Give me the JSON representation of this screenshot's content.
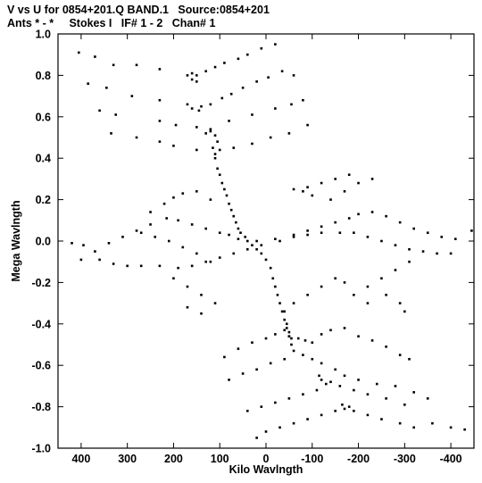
{
  "header": {
    "line1": "V vs U for 0854+201.Q BAND.1   Source:0854+201",
    "line2": "Ants * - *     Stokes I   IF# 1 - 2   Chan# 1"
  },
  "chart_data": {
    "type": "scatter",
    "title": "V vs U for 0854+201.Q BAND.1   Source:0854+201",
    "subtitle": "Ants * - *     Stokes I   IF# 1 - 2   Chan# 1",
    "xlabel": "Kilo Wavlngth",
    "ylabel": "Mega Wavlngth",
    "xlim": [
      450,
      -450
    ],
    "ylim": [
      -1.0,
      1.0
    ],
    "x_reversed": true,
    "x_ticks": [
      400,
      300,
      200,
      100,
      0,
      -100,
      -200,
      -300,
      -400
    ],
    "x_tick_labels": [
      "400",
      "300",
      "200",
      "100",
      "0",
      "-100",
      "-200",
      "-300",
      "-400"
    ],
    "y_ticks": [
      1.0,
      0.8,
      0.6,
      0.4,
      0.2,
      0.0,
      -0.2,
      -0.4,
      -0.6,
      -0.8,
      -1.0
    ],
    "y_tick_labels": [
      "1.0",
      "0.8",
      "0.6",
      "0.4",
      "0.2",
      "0.0",
      "-0.2",
      "-0.4",
      "-0.6",
      "-0.8",
      "-1.0"
    ],
    "grid": false,
    "marker_color": "#000000",
    "series": [
      {
        "values": [
          [
            405,
            0.91
          ],
          [
            370,
            0.89
          ],
          [
            330,
            0.85
          ],
          [
            280,
            0.85
          ],
          [
            230,
            0.83
          ],
          [
            160,
            0.81
          ],
          [
            150,
            0.8
          ],
          [
            130,
            0.82
          ],
          [
            110,
            0.84
          ],
          [
            90,
            0.86
          ],
          [
            60,
            0.88
          ],
          [
            40,
            0.9
          ],
          [
            10,
            0.93
          ],
          [
            -20,
            0.95
          ],
          [
            385,
            0.76
          ],
          [
            345,
            0.74
          ],
          [
            290,
            0.7
          ],
          [
            230,
            0.68
          ],
          [
            170,
            0.66
          ],
          [
            140,
            0.65
          ],
          [
            120,
            0.66
          ],
          [
            95,
            0.69
          ],
          [
            75,
            0.71
          ],
          [
            50,
            0.74
          ],
          [
            20,
            0.77
          ],
          [
            -5,
            0.79
          ],
          [
            -35,
            0.82
          ],
          [
            -60,
            0.8
          ],
          [
            360,
            0.63
          ],
          [
            325,
            0.61
          ],
          [
            230,
            0.58
          ],
          [
            195,
            0.56
          ],
          [
            150,
            0.55
          ],
          [
            130,
            0.52
          ],
          [
            120,
            0.53
          ],
          [
            80,
            0.58
          ],
          [
            30,
            0.61
          ],
          [
            -20,
            0.64
          ],
          [
            -55,
            0.66
          ],
          [
            -80,
            0.68
          ],
          [
            335,
            0.52
          ],
          [
            280,
            0.5
          ],
          [
            230,
            0.48
          ],
          [
            200,
            0.46
          ],
          [
            150,
            0.44
          ],
          [
            110,
            0.42
          ],
          [
            70,
            0.45
          ],
          [
            30,
            0.47
          ],
          [
            -10,
            0.5
          ],
          [
            -50,
            0.52
          ],
          [
            -90,
            0.56
          ],
          [
            115,
            0.45
          ],
          [
            110,
            0.4
          ],
          [
            105,
            0.35
          ],
          [
            100,
            0.32
          ],
          [
            95,
            0.28
          ],
          [
            90,
            0.25
          ],
          [
            85,
            0.22
          ],
          [
            80,
            0.18
          ],
          [
            75,
            0.15
          ],
          [
            70,
            0.12
          ],
          [
            65,
            0.09
          ],
          [
            60,
            0.06
          ],
          [
            55,
            0.04
          ],
          [
            45,
            0.02
          ],
          [
            40,
            0.0
          ],
          [
            30,
            -0.02
          ],
          [
            20,
            -0.04
          ],
          [
            10,
            -0.06
          ],
          [
            0,
            -0.09
          ],
          [
            -10,
            -0.13
          ],
          [
            -15,
            -0.18
          ],
          [
            -20,
            -0.22
          ],
          [
            -25,
            -0.26
          ],
          [
            -30,
            -0.3
          ],
          [
            -35,
            -0.34
          ],
          [
            -40,
            -0.38
          ],
          [
            -45,
            -0.42
          ],
          [
            -50,
            -0.46
          ],
          [
            -55,
            -0.5
          ],
          [
            420,
            -0.01
          ],
          [
            395,
            -0.02
          ],
          [
            370,
            -0.05
          ],
          [
            340,
            -0.01
          ],
          [
            310,
            0.02
          ],
          [
            280,
            0.05
          ],
          [
            250,
            0.08
          ],
          [
            215,
            0.11
          ],
          [
            190,
            0.1
          ],
          [
            160,
            0.08
          ],
          [
            130,
            0.06
          ],
          [
            100,
            0.04
          ],
          [
            80,
            0.03
          ],
          [
            60,
            0.01
          ],
          [
            20,
            0.0
          ],
          [
            -20,
            0.01
          ],
          [
            -60,
            0.03
          ],
          [
            -90,
            0.05
          ],
          [
            -120,
            0.07
          ],
          [
            -150,
            0.09
          ],
          [
            -180,
            0.11
          ],
          [
            -200,
            0.13
          ],
          [
            -230,
            0.14
          ],
          [
            -260,
            0.12
          ],
          [
            -290,
            0.09
          ],
          [
            -320,
            0.06
          ],
          [
            -350,
            0.04
          ],
          [
            -380,
            0.02
          ],
          [
            -410,
            0.01
          ],
          [
            -445,
            0.05
          ],
          [
            400,
            -0.09
          ],
          [
            360,
            -0.09
          ],
          [
            330,
            -0.11
          ],
          [
            300,
            -0.12
          ],
          [
            270,
            -0.12
          ],
          [
            230,
            -0.12
          ],
          [
            190,
            -0.13
          ],
          [
            160,
            -0.12
          ],
          [
            130,
            -0.1
          ],
          [
            100,
            -0.08
          ],
          [
            70,
            -0.06
          ],
          [
            40,
            -0.04
          ],
          [
            10,
            -0.02
          ],
          [
            -30,
            0.0
          ],
          [
            -60,
            0.02
          ],
          [
            -90,
            0.03
          ],
          [
            -120,
            0.04
          ],
          [
            -160,
            0.04
          ],
          [
            -190,
            0.04
          ],
          [
            -220,
            0.02
          ],
          [
            -250,
            0.0
          ],
          [
            -280,
            -0.02
          ],
          [
            -310,
            -0.04
          ],
          [
            -340,
            -0.05
          ],
          [
            -370,
            -0.06
          ],
          [
            -400,
            -0.06
          ],
          [
            250,
            0.14
          ],
          [
            220,
            0.18
          ],
          [
            200,
            0.21
          ],
          [
            180,
            0.23
          ],
          [
            150,
            0.24
          ],
          [
            120,
            0.2
          ],
          [
            -60,
            0.25
          ],
          [
            -80,
            0.24
          ],
          [
            -100,
            0.22
          ],
          [
            -140,
            0.2
          ],
          [
            -170,
            0.24
          ],
          [
            -200,
            0.28
          ],
          [
            -230,
            0.3
          ],
          [
            -180,
            0.32
          ],
          [
            -150,
            0.3
          ],
          [
            -120,
            0.28
          ],
          [
            -90,
            0.26
          ],
          [
            270,
            0.04
          ],
          [
            240,
            0.02
          ],
          [
            210,
            0.0
          ],
          [
            180,
            -0.03
          ],
          [
            150,
            -0.06
          ],
          [
            120,
            -0.1
          ],
          [
            200,
            -0.18
          ],
          [
            170,
            -0.22
          ],
          [
            140,
            -0.26
          ],
          [
            110,
            -0.3
          ],
          [
            170,
            -0.32
          ],
          [
            140,
            -0.35
          ],
          [
            -150,
            -0.18
          ],
          [
            -120,
            -0.22
          ],
          [
            -90,
            -0.26
          ],
          [
            -60,
            -0.3
          ],
          [
            -40,
            -0.34
          ],
          [
            -170,
            -0.2
          ],
          [
            -190,
            -0.26
          ],
          [
            -220,
            -0.3
          ],
          [
            -260,
            -0.26
          ],
          [
            -290,
            -0.3
          ],
          [
            -300,
            -0.34
          ],
          [
            -310,
            -0.1
          ],
          [
            -280,
            -0.14
          ],
          [
            -250,
            -0.18
          ],
          [
            -220,
            -0.22
          ],
          [
            -50,
            -0.46
          ],
          [
            -70,
            -0.47
          ],
          [
            -85,
            -0.48
          ],
          [
            -100,
            -0.49
          ],
          [
            -120,
            -0.45
          ],
          [
            -140,
            -0.43
          ],
          [
            -170,
            -0.42
          ],
          [
            -200,
            -0.46
          ],
          [
            -230,
            -0.48
          ],
          [
            -260,
            -0.51
          ],
          [
            -290,
            -0.55
          ],
          [
            -310,
            -0.57
          ],
          [
            -40,
            -0.43
          ],
          [
            -20,
            -0.45
          ],
          [
            0,
            -0.47
          ],
          [
            30,
            -0.49
          ],
          [
            60,
            -0.52
          ],
          [
            90,
            -0.56
          ],
          [
            -60,
            -0.53
          ],
          [
            -80,
            -0.55
          ],
          [
            -100,
            -0.57
          ],
          [
            -120,
            -0.59
          ],
          [
            -150,
            -0.62
          ],
          [
            -170,
            -0.65
          ],
          [
            -200,
            -0.67
          ],
          [
            -240,
            -0.69
          ],
          [
            -280,
            -0.7
          ],
          [
            -320,
            -0.73
          ],
          [
            -350,
            -0.76
          ],
          [
            -40,
            -0.57
          ],
          [
            -10,
            -0.59
          ],
          [
            20,
            -0.62
          ],
          [
            50,
            -0.64
          ],
          [
            80,
            -0.67
          ],
          [
            -140,
            -0.68
          ],
          [
            -160,
            -0.7
          ],
          [
            -190,
            -0.72
          ],
          [
            -220,
            -0.74
          ],
          [
            -260,
            -0.76
          ],
          [
            -300,
            -0.79
          ],
          [
            -110,
            -0.72
          ],
          [
            -80,
            -0.74
          ],
          [
            -50,
            -0.76
          ],
          [
            -20,
            -0.78
          ],
          [
            10,
            -0.8
          ],
          [
            40,
            -0.82
          ],
          [
            -180,
            -0.8
          ],
          [
            -190,
            -0.82
          ],
          [
            -220,
            -0.84
          ],
          [
            -250,
            -0.86
          ],
          [
            -290,
            -0.88
          ],
          [
            -320,
            -0.9
          ],
          [
            -150,
            -0.82
          ],
          [
            -120,
            -0.84
          ],
          [
            -90,
            -0.86
          ],
          [
            -60,
            -0.88
          ],
          [
            -30,
            -0.9
          ],
          [
            0,
            -0.92
          ],
          [
            20,
            -0.95
          ],
          [
            -360,
            -0.88
          ],
          [
            -400,
            -0.9
          ],
          [
            -430,
            -0.91
          ],
          [
            170,
            0.8
          ],
          [
            160,
            0.78
          ],
          [
            150,
            0.77
          ],
          [
            160,
            0.64
          ],
          [
            145,
            0.63
          ],
          [
            120,
            0.54
          ],
          [
            110,
            0.51
          ],
          [
            105,
            0.48
          ],
          [
            100,
            0.44
          ],
          [
            -45,
            -0.4
          ],
          [
            -50,
            -0.44
          ],
          [
            -55,
            -0.47
          ],
          [
            -130,
            -0.69
          ],
          [
            -120,
            -0.67
          ],
          [
            -115,
            -0.65
          ],
          [
            -170,
            -0.81
          ],
          [
            -165,
            -0.79
          ]
        ]
      }
    ]
  }
}
